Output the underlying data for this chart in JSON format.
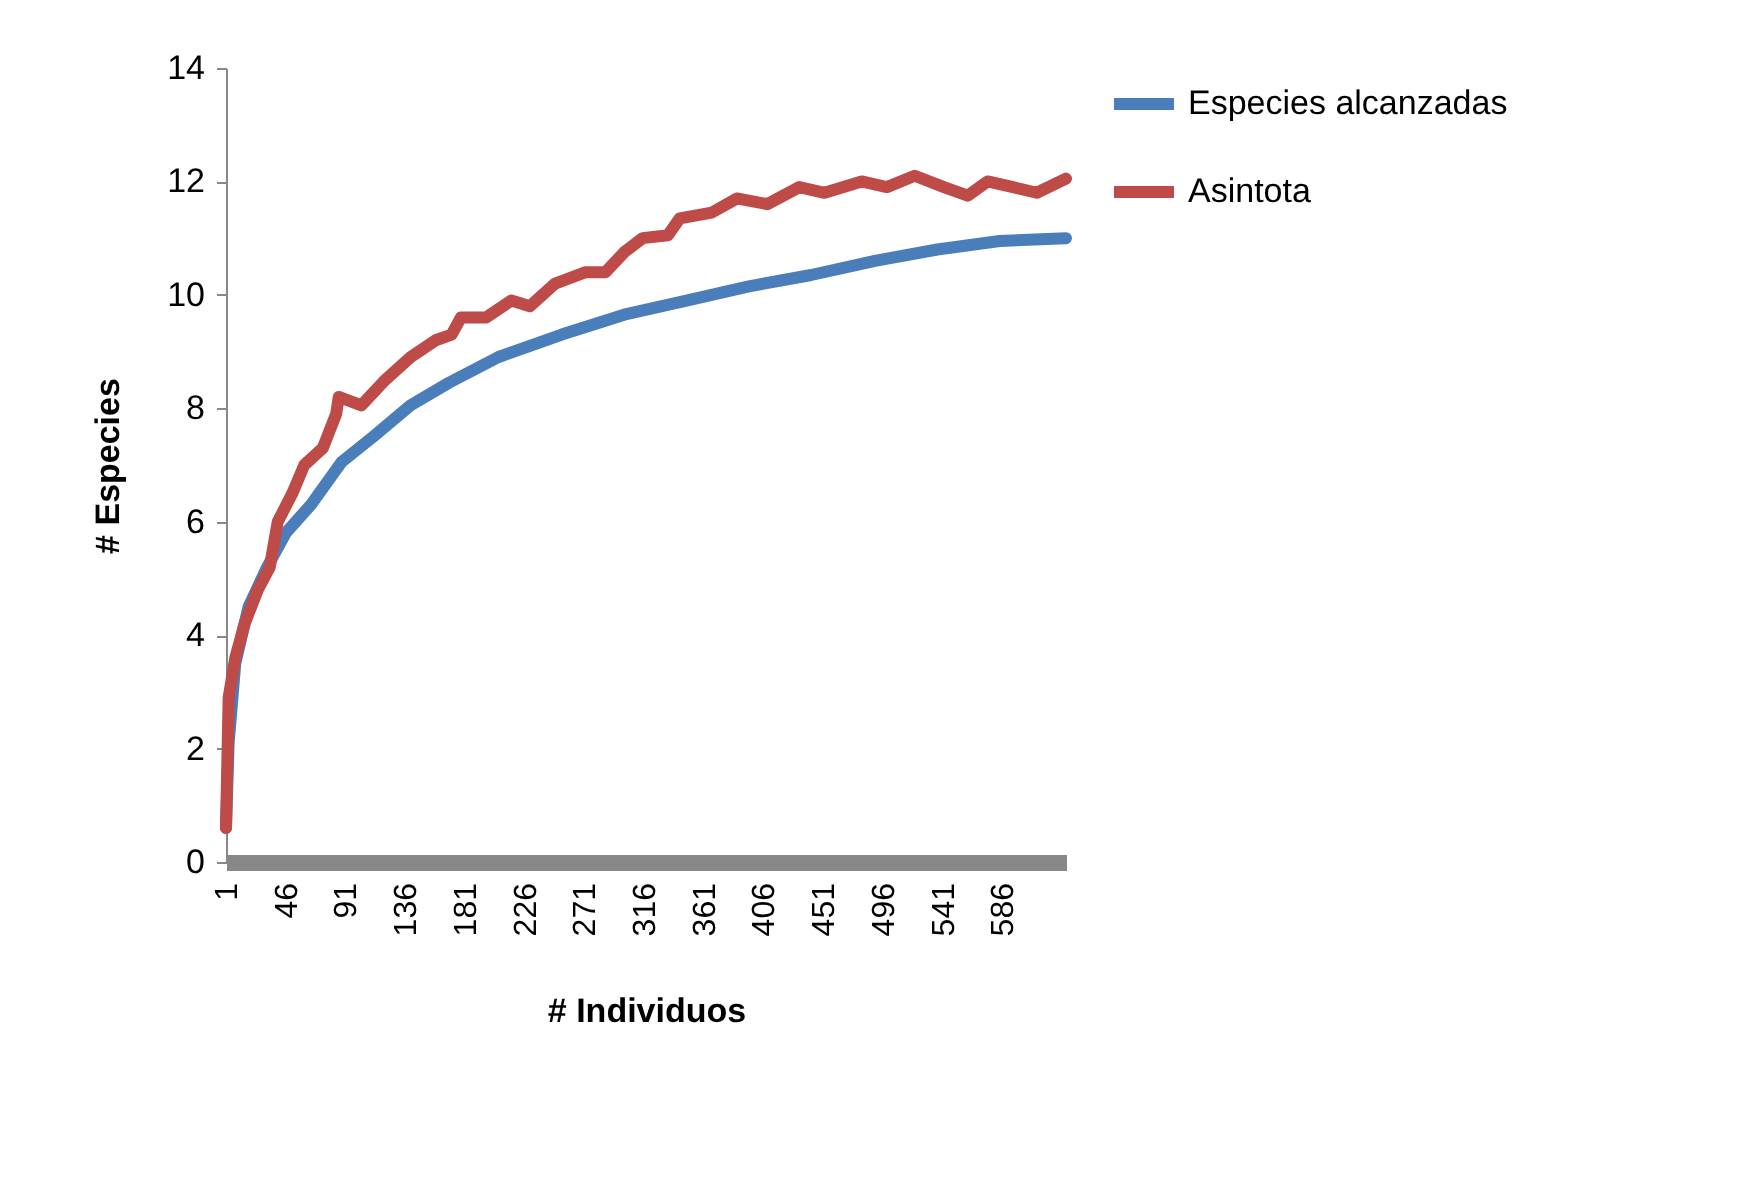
{
  "chart_data": {
    "type": "line",
    "xlabel": "#  Individuos",
    "ylabel": "#  Especies",
    "xlim": [
      1,
      634
    ],
    "xticks": [
      1,
      46,
      91,
      136,
      181,
      226,
      271,
      316,
      361,
      406,
      451,
      496,
      541,
      586
    ],
    "ylim": [
      0,
      14
    ],
    "yticks": [
      0,
      2,
      4,
      6,
      8,
      10,
      12,
      14
    ],
    "grid": false,
    "legend": "right",
    "series": [
      {
        "name": "Especies alcanzadas",
        "color": "#4a7ebb",
        "x": [
          1,
          3,
          8,
          18,
          32,
          46,
          65,
          88,
          112,
          140,
          169,
          206,
          254,
          301,
          348,
          395,
          442,
          490,
          537,
          584,
          634
        ],
        "values": [
          0.6,
          2.1,
          3.5,
          4.5,
          5.2,
          5.8,
          6.3,
          7.05,
          7.5,
          8.05,
          8.45,
          8.9,
          9.3,
          9.65,
          9.9,
          10.15,
          10.35,
          10.6,
          10.8,
          10.95,
          11.0
        ]
      },
      {
        "name": "Asintota",
        "color": "#be4b48",
        "x": [
          1,
          3,
          8,
          15,
          25,
          34,
          40,
          51,
          60,
          74,
          84,
          86,
          103,
          121,
          140,
          159,
          171,
          178,
          197,
          216,
          230,
          249,
          272,
          287,
          301,
          315,
          334,
          343,
          367,
          386,
          409,
          433,
          452,
          480,
          499,
          520,
          542,
          560,
          575,
          594,
          612,
          634
        ],
        "values": [
          0.6,
          2.9,
          3.6,
          4.2,
          4.8,
          5.2,
          6.0,
          6.5,
          7.0,
          7.3,
          7.9,
          8.2,
          8.05,
          8.5,
          8.9,
          9.2,
          9.3,
          9.6,
          9.6,
          9.9,
          9.8,
          10.2,
          10.4,
          10.4,
          10.75,
          11.0,
          11.05,
          11.35,
          11.45,
          11.7,
          11.6,
          11.9,
          11.8,
          12.0,
          11.9,
          12.1,
          11.9,
          11.75,
          12.0,
          11.9,
          11.8,
          12.05
        ]
      }
    ]
  }
}
